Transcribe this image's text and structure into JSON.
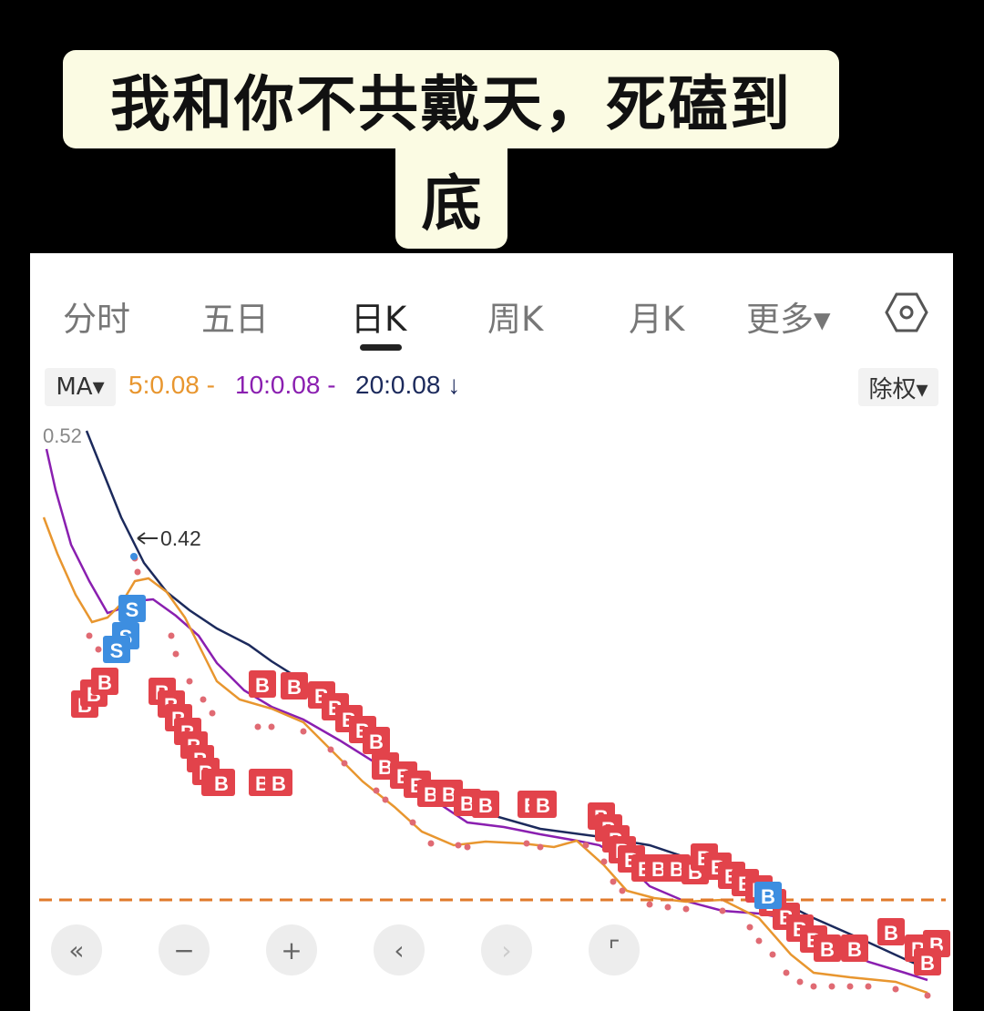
{
  "caption": {
    "line1": "我和你不共戴天，死磕到",
    "line2": "底"
  },
  "tabs": [
    "分时",
    "五日",
    "日K",
    "周K",
    "月K",
    "更多▾"
  ],
  "active_tab": "日K",
  "settings_icon": "hexagon-settings-icon",
  "indicator": {
    "name": "MA▾",
    "ma5": "5:0.08 -",
    "ma10": "10:0.08 -",
    "ma20": "20:0.08 ↓",
    "colors": {
      "ma5": "#e8962f",
      "ma10": "#8a1fb0",
      "ma20": "#1c2a5c"
    }
  },
  "adjust": "除权▾",
  "y_max_label": "0.52",
  "high_marker": "0.42",
  "signal_labels": {
    "buy": "B",
    "sell": "S"
  },
  "controls": [
    {
      "icon": "double-left-icon",
      "glyph": "«"
    },
    {
      "icon": "zoom-out-icon",
      "glyph": "−"
    },
    {
      "icon": "zoom-in-icon",
      "glyph": "+"
    },
    {
      "icon": "prev-icon",
      "glyph": "‹"
    },
    {
      "icon": "next-icon",
      "glyph": "›"
    },
    {
      "icon": "fullscreen-icon",
      "glyph": "⌜"
    }
  ]
}
